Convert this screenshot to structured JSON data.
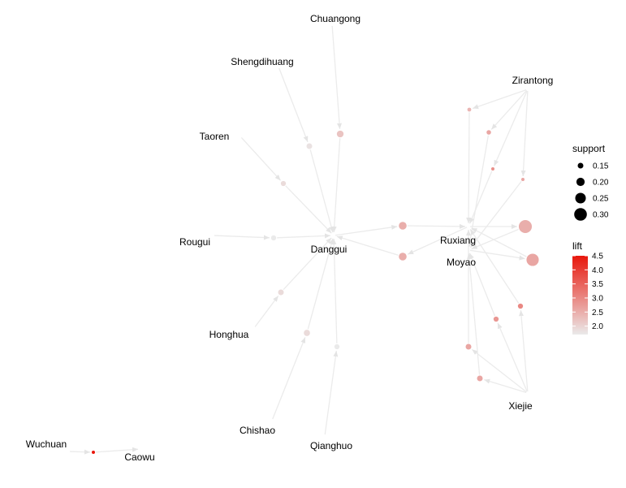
{
  "graph": {
    "items": [
      {
        "id": "Chuangong",
        "label": "Chuangong"
      },
      {
        "id": "Shengdihuang",
        "label": "Shengdihuang"
      },
      {
        "id": "Taoren",
        "label": "Taoren"
      },
      {
        "id": "Rougui",
        "label": "Rougui"
      },
      {
        "id": "Danggui",
        "label": "Danggui"
      },
      {
        "id": "Honghua",
        "label": "Honghua"
      },
      {
        "id": "Chishao",
        "label": "Chishao"
      },
      {
        "id": "Qianghuo",
        "label": "Qianghuo"
      },
      {
        "id": "Zirantong",
        "label": "Zirantong"
      },
      {
        "id": "Ruxiang",
        "label": "Ruxiang"
      },
      {
        "id": "Moyao",
        "label": "Moyao"
      },
      {
        "id": "Xiejie",
        "label": "Xiejie"
      },
      {
        "id": "Wuchuan",
        "label": "Wuchuan"
      },
      {
        "id": "Caowu",
        "label": "Caowu"
      }
    ],
    "rules": [
      {
        "id": "r1",
        "support": 0.17,
        "lift": 2.2
      },
      {
        "id": "r2",
        "support": 0.15,
        "lift": 1.8
      },
      {
        "id": "r3",
        "support": 0.14,
        "lift": 1.9
      },
      {
        "id": "r4",
        "support": 0.14,
        "lift": 1.7
      },
      {
        "id": "r5",
        "support": 0.15,
        "lift": 1.9
      },
      {
        "id": "r6",
        "support": 0.16,
        "lift": 1.9
      },
      {
        "id": "r7",
        "support": 0.14,
        "lift": 1.7
      },
      {
        "id": "r8",
        "support": 0.19,
        "lift": 2.5
      },
      {
        "id": "r9",
        "support": 0.19,
        "lift": 2.5
      },
      {
        "id": "r10",
        "support": 0.12,
        "lift": 2.4
      },
      {
        "id": "r11",
        "support": 0.13,
        "lift": 2.6
      },
      {
        "id": "r12",
        "support": 0.11,
        "lift": 2.9
      },
      {
        "id": "r13",
        "support": 0.11,
        "lift": 2.6
      },
      {
        "id": "r14",
        "support": 0.31,
        "lift": 2.5
      },
      {
        "id": "r15",
        "support": 0.29,
        "lift": 2.6
      },
      {
        "id": "r16",
        "support": 0.14,
        "lift": 3.0
      },
      {
        "id": "r17",
        "support": 0.14,
        "lift": 2.8
      },
      {
        "id": "r18",
        "support": 0.15,
        "lift": 2.6
      },
      {
        "id": "r19",
        "support": 0.15,
        "lift": 2.6
      },
      {
        "id": "r20",
        "support": 0.11,
        "lift": 4.5
      }
    ],
    "edges": [
      [
        "Chuangong",
        "r1"
      ],
      [
        "r1",
        "Danggui"
      ],
      [
        "Shengdihuang",
        "r2"
      ],
      [
        "r2",
        "Danggui"
      ],
      [
        "Taoren",
        "r3"
      ],
      [
        "r3",
        "Danggui"
      ],
      [
        "Rougui",
        "r4"
      ],
      [
        "r4",
        "Danggui"
      ],
      [
        "Honghua",
        "r5"
      ],
      [
        "r5",
        "Danggui"
      ],
      [
        "Chishao",
        "r6"
      ],
      [
        "r6",
        "Danggui"
      ],
      [
        "Qianghuo",
        "r7"
      ],
      [
        "r7",
        "Danggui"
      ],
      [
        "Danggui",
        "r8"
      ],
      [
        "r8",
        "Ruxiang"
      ],
      [
        "Ruxiang",
        "r9"
      ],
      [
        "r9",
        "Danggui"
      ],
      [
        "Zirantong",
        "r10"
      ],
      [
        "r10",
        "Ruxiang"
      ],
      [
        "Zirantong",
        "r11"
      ],
      [
        "r11",
        "Moyao"
      ],
      [
        "Zirantong",
        "r12"
      ],
      [
        "r12",
        "Ruxiang"
      ],
      [
        "Zirantong",
        "r13"
      ],
      [
        "r13",
        "Moyao"
      ],
      [
        "Ruxiang",
        "r14"
      ],
      [
        "r14",
        "Moyao"
      ],
      [
        "Moyao",
        "r15"
      ],
      [
        "r15",
        "Ruxiang"
      ],
      [
        "Xiejie",
        "r16"
      ],
      [
        "r16",
        "Ruxiang"
      ],
      [
        "Xiejie",
        "r17"
      ],
      [
        "r17",
        "Moyao"
      ],
      [
        "Xiejie",
        "r18"
      ],
      [
        "r18",
        "Ruxiang"
      ],
      [
        "Xiejie",
        "r19"
      ],
      [
        "r19",
        "Moyao"
      ],
      [
        "Wuchuan",
        "r20"
      ],
      [
        "r20",
        "Caowu"
      ]
    ]
  },
  "legend": {
    "support": {
      "title": "support",
      "levels": [
        0.15,
        0.2,
        0.25,
        0.3
      ],
      "labels": [
        "0.15",
        "0.20",
        "0.25",
        "0.30"
      ]
    },
    "lift": {
      "title": "lift",
      "ticks": [
        2.0,
        2.5,
        3.0,
        3.5,
        4.0,
        4.5
      ],
      "labels": [
        "2.0",
        "2.5",
        "3.0",
        "3.5",
        "4.0",
        "4.5"
      ],
      "min": 1.7,
      "max": 4.5,
      "color_low": "#eaeaea",
      "color_high": "#e8170c"
    }
  },
  "colors": {
    "edge": "#ebebeb",
    "node_low": "#eaeaea",
    "node_high": "#e8170c"
  }
}
